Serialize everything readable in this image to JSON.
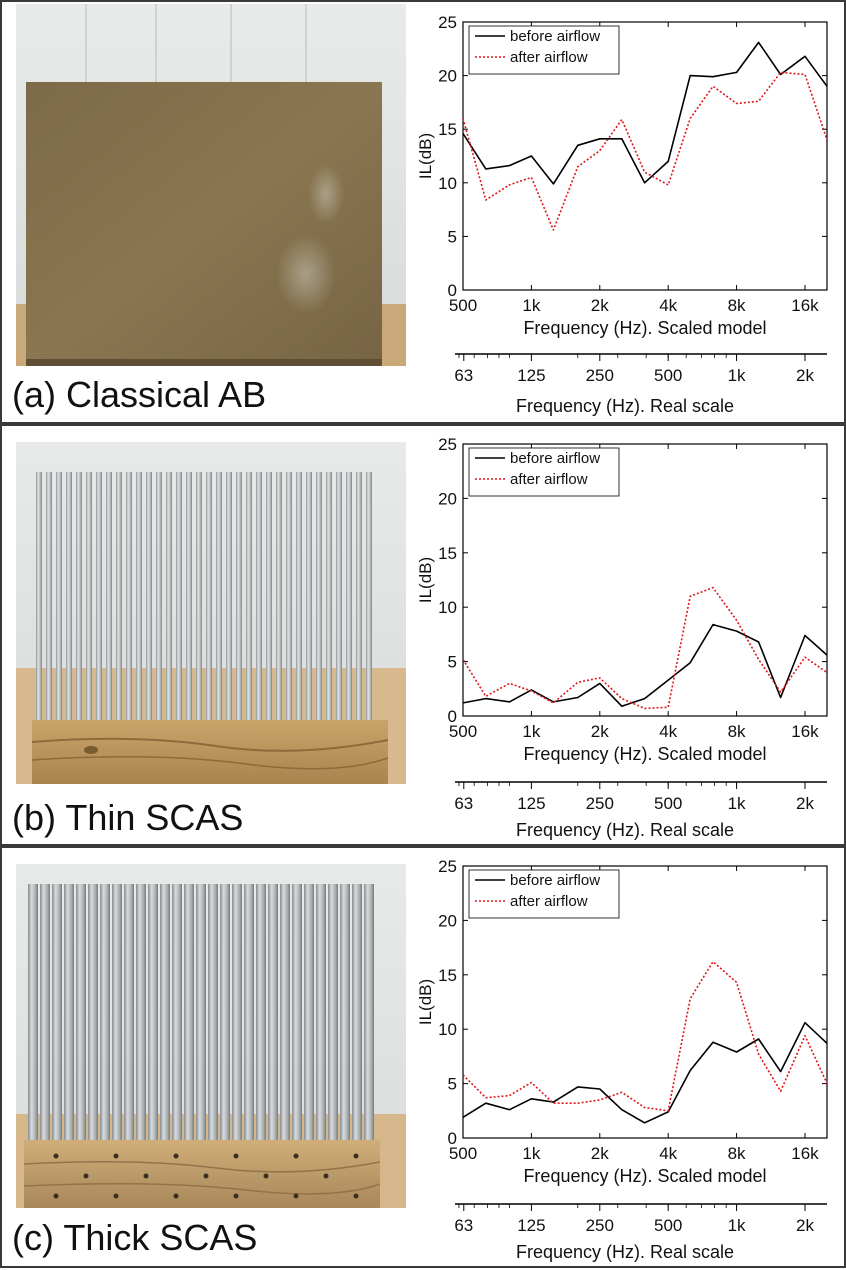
{
  "panels": [
    {
      "caption": "(a) Classical AB",
      "photo": "classical-ab-photo"
    },
    {
      "caption": "(b) Thin SCAS",
      "photo": "thin-scas-photo"
    },
    {
      "caption": "(c) Thick SCAS",
      "photo": "thick-scas-photo"
    }
  ],
  "chart_data": [
    {
      "type": "line",
      "x_scale": "log",
      "xlim": [
        500,
        20000
      ],
      "ylim": [
        0,
        25
      ],
      "ylabel": "IL(dB)",
      "xlabel": "Frequency (Hz). Scaled model",
      "x_ticks": [
        {
          "value": 500,
          "label": "500"
        },
        {
          "value": 1000,
          "label": "1k"
        },
        {
          "value": 2000,
          "label": "2k"
        },
        {
          "value": 4000,
          "label": "4k"
        },
        {
          "value": 8000,
          "label": "8k"
        },
        {
          "value": 16000,
          "label": "16k"
        }
      ],
      "y_ticks": [
        0,
        5,
        10,
        15,
        20,
        25
      ],
      "secondary_xaxis": {
        "xlabel": "Frequency (Hz). Real scale",
        "x_ticks": [
          {
            "value": 63,
            "label": "63"
          },
          {
            "value": 125,
            "label": "125"
          },
          {
            "value": 250,
            "label": "250"
          },
          {
            "value": 500,
            "label": "500"
          },
          {
            "value": 1000,
            "label": "1k"
          },
          {
            "value": 2000,
            "label": "2k"
          }
        ]
      },
      "legend": "top-left",
      "x": [
        500,
        630,
        800,
        1000,
        1250,
        1600,
        2000,
        2500,
        3150,
        4000,
        5000,
        6300,
        8000,
        10000,
        12500,
        16000,
        20000
      ],
      "series": [
        {
          "name": "before airflow",
          "color": "#000000",
          "dash": "solid",
          "values": [
            14.6,
            11.3,
            11.6,
            12.5,
            9.9,
            13.5,
            14.1,
            14.1,
            10.0,
            12.0,
            20.0,
            19.9,
            20.3,
            23.1,
            20.1,
            21.8,
            19.0
          ]
        },
        {
          "name": "after airflow",
          "color": "#e0161b",
          "dash": "dotted",
          "values": [
            16.0,
            8.4,
            9.8,
            10.5,
            5.6,
            11.5,
            13.0,
            15.9,
            11.0,
            9.8,
            16.0,
            19.0,
            17.4,
            17.6,
            20.3,
            20.1,
            14.0
          ]
        }
      ]
    },
    {
      "type": "line",
      "x_scale": "log",
      "xlim": [
        500,
        20000
      ],
      "ylim": [
        0,
        25
      ],
      "ylabel": "IL(dB)",
      "xlabel": "Frequency (Hz). Scaled model",
      "x_ticks": [
        {
          "value": 500,
          "label": "500"
        },
        {
          "value": 1000,
          "label": "1k"
        },
        {
          "value": 2000,
          "label": "2k"
        },
        {
          "value": 4000,
          "label": "4k"
        },
        {
          "value": 8000,
          "label": "8k"
        },
        {
          "value": 16000,
          "label": "16k"
        }
      ],
      "y_ticks": [
        0,
        5,
        10,
        15,
        20,
        25
      ],
      "secondary_xaxis": {
        "xlabel": "Frequency (Hz). Real scale",
        "x_ticks": [
          {
            "value": 63,
            "label": "63"
          },
          {
            "value": 125,
            "label": "125"
          },
          {
            "value": 250,
            "label": "250"
          },
          {
            "value": 500,
            "label": "500"
          },
          {
            "value": 1000,
            "label": "1k"
          },
          {
            "value": 2000,
            "label": "2k"
          }
        ]
      },
      "legend": "top-left",
      "x": [
        500,
        630,
        800,
        1000,
        1250,
        1600,
        2000,
        2500,
        3150,
        4000,
        5000,
        6300,
        8000,
        10000,
        12500,
        16000,
        20000
      ],
      "series": [
        {
          "name": "before airflow",
          "color": "#000000",
          "dash": "solid",
          "values": [
            1.2,
            1.6,
            1.3,
            2.4,
            1.3,
            1.7,
            3.0,
            0.9,
            1.6,
            3.3,
            4.9,
            8.4,
            7.8,
            6.8,
            1.7,
            7.4,
            5.6
          ]
        },
        {
          "name": "after airflow",
          "color": "#e0161b",
          "dash": "dotted",
          "values": [
            5.2,
            1.8,
            3.0,
            2.3,
            1.2,
            3.1,
            3.5,
            1.6,
            0.7,
            0.8,
            11.0,
            11.8,
            8.8,
            5.2,
            2.2,
            5.4,
            4.0
          ]
        }
      ]
    },
    {
      "type": "line",
      "x_scale": "log",
      "xlim": [
        500,
        20000
      ],
      "ylim": [
        0,
        25
      ],
      "ylabel": "IL(dB)",
      "xlabel": "Frequency (Hz). Scaled model",
      "x_ticks": [
        {
          "value": 500,
          "label": "500"
        },
        {
          "value": 1000,
          "label": "1k"
        },
        {
          "value": 2000,
          "label": "2k"
        },
        {
          "value": 4000,
          "label": "4k"
        },
        {
          "value": 8000,
          "label": "8k"
        },
        {
          "value": 16000,
          "label": "16k"
        }
      ],
      "y_ticks": [
        0,
        5,
        10,
        15,
        20,
        25
      ],
      "secondary_xaxis": {
        "xlabel": "Frequency (Hz). Real scale",
        "x_ticks": [
          {
            "value": 63,
            "label": "63"
          },
          {
            "value": 125,
            "label": "125"
          },
          {
            "value": 250,
            "label": "250"
          },
          {
            "value": 500,
            "label": "500"
          },
          {
            "value": 1000,
            "label": "1k"
          },
          {
            "value": 2000,
            "label": "2k"
          }
        ]
      },
      "legend": "top-left",
      "x": [
        500,
        630,
        800,
        1000,
        1250,
        1600,
        2000,
        2500,
        3150,
        4000,
        5000,
        6300,
        8000,
        10000,
        12500,
        16000,
        20000
      ],
      "series": [
        {
          "name": "before airflow",
          "color": "#000000",
          "dash": "solid",
          "values": [
            1.9,
            3.2,
            2.6,
            3.6,
            3.3,
            4.7,
            4.5,
            2.6,
            1.4,
            2.4,
            6.2,
            8.8,
            7.9,
            9.1,
            6.1,
            10.6,
            8.7
          ]
        },
        {
          "name": "after airflow",
          "color": "#e0161b",
          "dash": "dotted",
          "values": [
            5.8,
            3.7,
            3.9,
            5.1,
            3.2,
            3.2,
            3.5,
            4.2,
            2.8,
            2.5,
            12.8,
            16.2,
            14.3,
            7.7,
            4.3,
            9.4,
            5.0
          ]
        }
      ]
    }
  ]
}
